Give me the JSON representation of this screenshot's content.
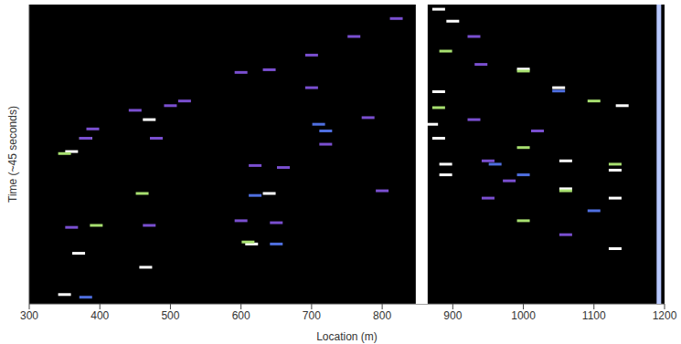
{
  "chart_data": {
    "type": "scatter",
    "xlabel": "Location (m)",
    "ylabel": "Time (~45 seconds)",
    "xlim": [
      300,
      1200
    ],
    "xticks": [
      300,
      400,
      500,
      600,
      700,
      800,
      900,
      1000,
      1100,
      1200
    ],
    "ylim": [
      0,
      45
    ],
    "tick_labels": "x",
    "series": [
      {
        "color": "#ffffff",
        "marker": "dash",
        "x": [
          360,
          370,
          350,
          380,
          470,
          465,
          640,
          615,
          880,
          1050,
          1140,
          880,
          1060,
          1130,
          880,
          1060,
          1130,
          890,
          1130,
          1000,
          900,
          870,
          890
        ],
        "y": [
          22.9,
          7.6,
          1.4,
          24.9,
          27.7,
          5.5,
          16.6,
          9.0,
          44.3,
          32.5,
          29.8,
          31.9,
          21.5,
          20.1,
          24.9,
          17.3,
          15.9,
          19.4,
          8.3,
          35.3,
          42.5,
          27.0,
          21.0
        ]
      },
      {
        "color": "#a8e070",
        "marker": "dash",
        "x": [
          350,
          395,
          460,
          610,
          1000,
          1100,
          1000,
          1060,
          1000,
          890,
          880,
          1130
        ],
        "y": [
          22.6,
          11.8,
          16.6,
          9.3,
          35.0,
          30.5,
          23.5,
          17.0,
          12.5,
          38.0,
          29.5,
          21.0
        ]
      },
      {
        "color": "#7a4fd0",
        "marker": "dash",
        "x": [
          380,
          390,
          450,
          480,
          500,
          520,
          600,
          640,
          700,
          760,
          820,
          620,
          660,
          600,
          650,
          700,
          930,
          930,
          950,
          950,
          1060,
          940,
          980,
          1020,
          360,
          470,
          720,
          780,
          800
        ],
        "y": [
          24.9,
          26.3,
          29.1,
          24.9,
          29.8,
          30.5,
          34.8,
          35.2,
          37.4,
          40.2,
          42.9,
          20.8,
          20.5,
          12.5,
          12.2,
          32.5,
          40.2,
          27.7,
          21.5,
          15.9,
          10.4,
          36.0,
          18.5,
          26.0,
          11.5,
          11.8,
          24.0,
          28.0,
          17.0
        ]
      },
      {
        "color": "#4f6fe0",
        "marker": "dash",
        "x": [
          710,
          720,
          620,
          1000,
          1050,
          960,
          1100,
          650,
          380
        ],
        "y": [
          27.0,
          26.0,
          16.3,
          19.4,
          32.0,
          21.0,
          14.0,
          9.0,
          1.0
        ]
      },
      {
        "type": "line",
        "color": "#ffffff",
        "x": [
          856,
          856
        ],
        "y": [
          0,
          45
        ]
      },
      {
        "type": "line",
        "color": "#b8c8ff",
        "x": [
          1192,
          1192
        ],
        "y": [
          0,
          45
        ]
      }
    ]
  }
}
